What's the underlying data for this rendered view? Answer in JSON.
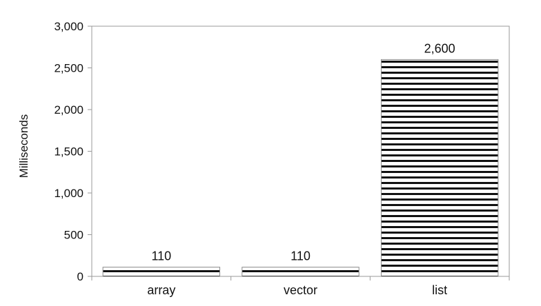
{
  "chart_data": {
    "type": "bar",
    "title": "",
    "xlabel": "",
    "ylabel": "Milliseconds",
    "categories": [
      "array",
      "vector",
      "list"
    ],
    "values": [
      110,
      110,
      2600
    ],
    "value_labels": [
      "110",
      "110",
      "2,600"
    ],
    "ylim": [
      0,
      3000
    ],
    "yticks": [
      0,
      500,
      1000,
      1500,
      2000,
      2500,
      3000
    ],
    "ytick_labels": [
      "0",
      "500",
      "1,000",
      "1,500",
      "2,000",
      "2,500",
      "3,000"
    ],
    "grid": false,
    "legend": "none",
    "bar_pattern": "horizontal-stripes",
    "colors": {
      "bar_stripe": "#111111",
      "bar_fill": "#ffffff",
      "axis": "#999999",
      "text": "#111111"
    }
  }
}
